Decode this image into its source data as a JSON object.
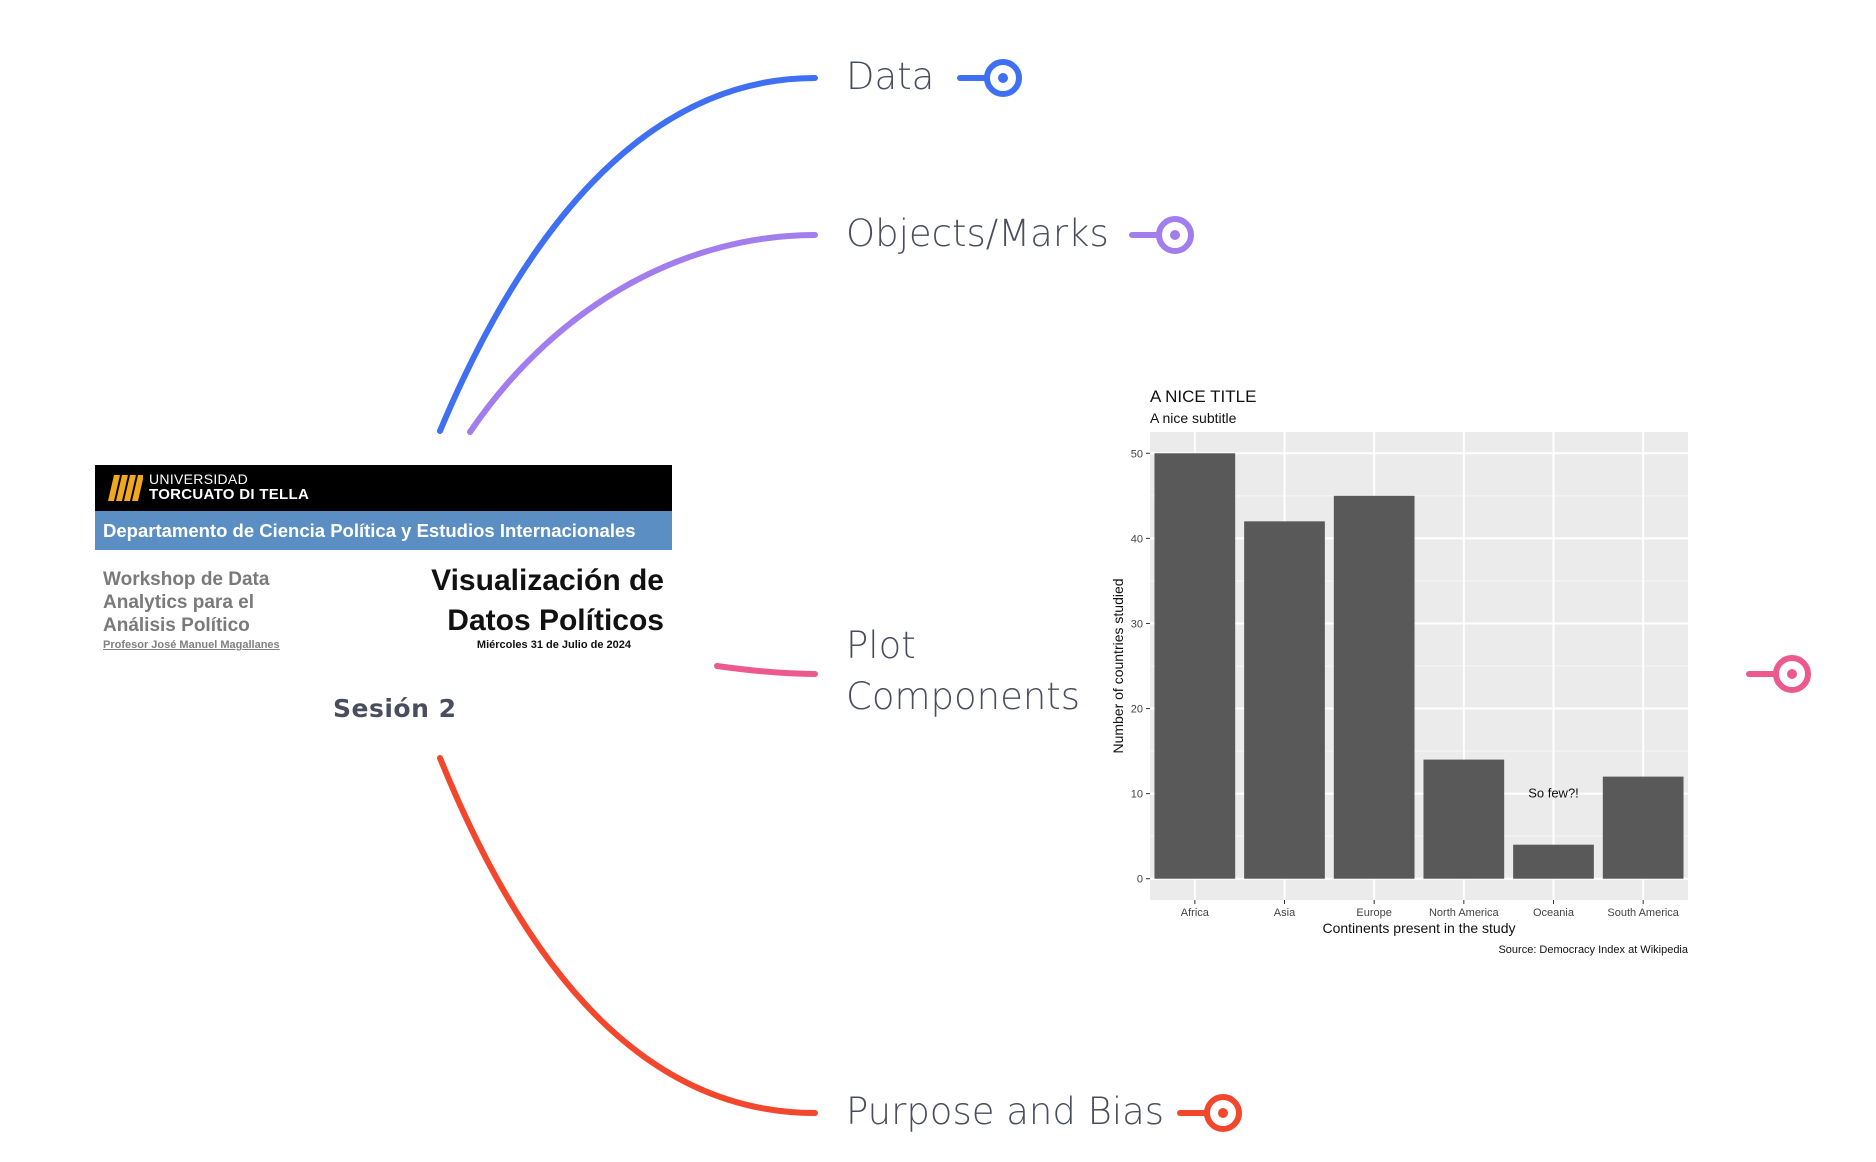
{
  "branches": [
    {
      "id": "data",
      "label": "Data",
      "color": "#3f6ff2"
    },
    {
      "id": "objects",
      "label": "Objects/Marks",
      "color": "#a27ded"
    },
    {
      "id": "plot",
      "label_lines": [
        "Plot",
        "Components"
      ],
      "color": "#ec5a8d"
    },
    {
      "id": "purpose",
      "label": "Purpose and Bias",
      "color": "#f2472d"
    }
  ],
  "central": {
    "university": {
      "line1": "UNIVERSIDAD",
      "line2": "TORCUATO DI TELLA"
    },
    "department": "Departamento de Ciencia Política y Estudios Internacionales",
    "workshop_lines": [
      "Workshop de Data",
      "Analytics para el",
      "Análisis Político"
    ],
    "professor": "Profesor José Manuel Magallanes",
    "title_lines": [
      "Visualización de",
      "Datos Políticos"
    ],
    "date": "Miércoles 31 de Julio de 2024",
    "session": "Sesión 2",
    "logo_color": "#f2a81d"
  },
  "chart_data": {
    "type": "bar",
    "title": "A NICE TITLE",
    "subtitle": "A nice subtitle",
    "xlabel": "Continents present in the study",
    "ylabel": "Number of countries studied",
    "caption": "Source: Democracy Index at Wikipedia",
    "annotation": {
      "text": "So few?!",
      "x": "Oceania",
      "y": 10
    },
    "categories": [
      "Africa",
      "Asia",
      "Europe",
      "North America",
      "Oceania",
      "South America"
    ],
    "values": [
      50,
      42,
      45,
      14,
      4,
      12
    ],
    "ylim": [
      -2.5,
      52.5
    ],
    "yticks": [
      0,
      10,
      20,
      30,
      40,
      50
    ],
    "grid": true,
    "bar_color": "#595959",
    "panel_color": "#ebebeb"
  }
}
